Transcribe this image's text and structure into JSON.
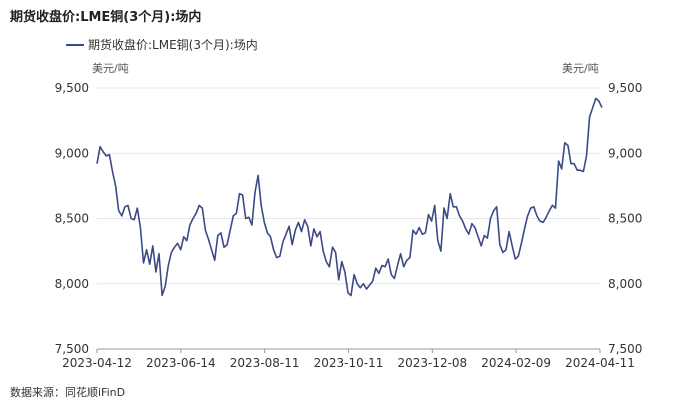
{
  "chart_data": {
    "type": "line",
    "title": "期货收盘价:LME铜(3个月):场内",
    "legend": [
      "期货收盘价:LME铜(3个月):场内"
    ],
    "unit_left": "美元/吨",
    "unit_right": "美元/吨",
    "ylim": [
      7500,
      9500
    ],
    "y_ticks": [
      7500,
      8000,
      8500,
      9000,
      9500
    ],
    "y_tick_labels": [
      "7,500",
      "8,000",
      "8,500",
      "9,000",
      "9,500"
    ],
    "x_tick_labels": [
      "2023-04-12",
      "2023-06-14",
      "2023-08-11",
      "2023-10-11",
      "2023-12-08",
      "2024-02-09",
      "2024-04-11"
    ],
    "series_color": "#3b4a86",
    "values": [
      8920,
      9050,
      9010,
      8980,
      8990,
      8860,
      8750,
      8560,
      8520,
      8590,
      8600,
      8500,
      8490,
      8580,
      8430,
      8160,
      8260,
      8150,
      8290,
      8090,
      8230,
      7910,
      7980,
      8140,
      8240,
      8280,
      8310,
      8260,
      8360,
      8330,
      8450,
      8500,
      8540,
      8600,
      8580,
      8410,
      8340,
      8260,
      8180,
      8370,
      8390,
      8280,
      8300,
      8410,
      8520,
      8540,
      8690,
      8680,
      8500,
      8510,
      8450,
      8700,
      8830,
      8600,
      8470,
      8390,
      8360,
      8260,
      8200,
      8210,
      8320,
      8380,
      8440,
      8300,
      8410,
      8470,
      8400,
      8490,
      8440,
      8290,
      8420,
      8360,
      8400,
      8250,
      8170,
      8130,
      8280,
      8240,
      8030,
      8170,
      8090,
      7930,
      7910,
      8070,
      8000,
      7970,
      8000,
      7960,
      7990,
      8020,
      8120,
      8080,
      8140,
      8130,
      8190,
      8070,
      8040,
      8140,
      8230,
      8130,
      8180,
      8200,
      8410,
      8380,
      8430,
      8380,
      8390,
      8530,
      8480,
      8600,
      8330,
      8250,
      8580,
      8500,
      8690,
      8590,
      8590,
      8520,
      8480,
      8420,
      8380,
      8460,
      8430,
      8360,
      8290,
      8370,
      8350,
      8500,
      8560,
      8590,
      8300,
      8240,
      8260,
      8400,
      8290,
      8190,
      8210,
      8310,
      8420,
      8520,
      8580,
      8590,
      8520,
      8480,
      8470,
      8510,
      8560,
      8600,
      8580,
      8940,
      8880,
      9080,
      9060,
      8920,
      8920,
      8870,
      8870,
      8860,
      8980,
      9280,
      9350,
      9420,
      9400,
      9350
    ],
    "x_label": "",
    "y_label": ""
  },
  "source": "数据来源：同花顺iFinD"
}
